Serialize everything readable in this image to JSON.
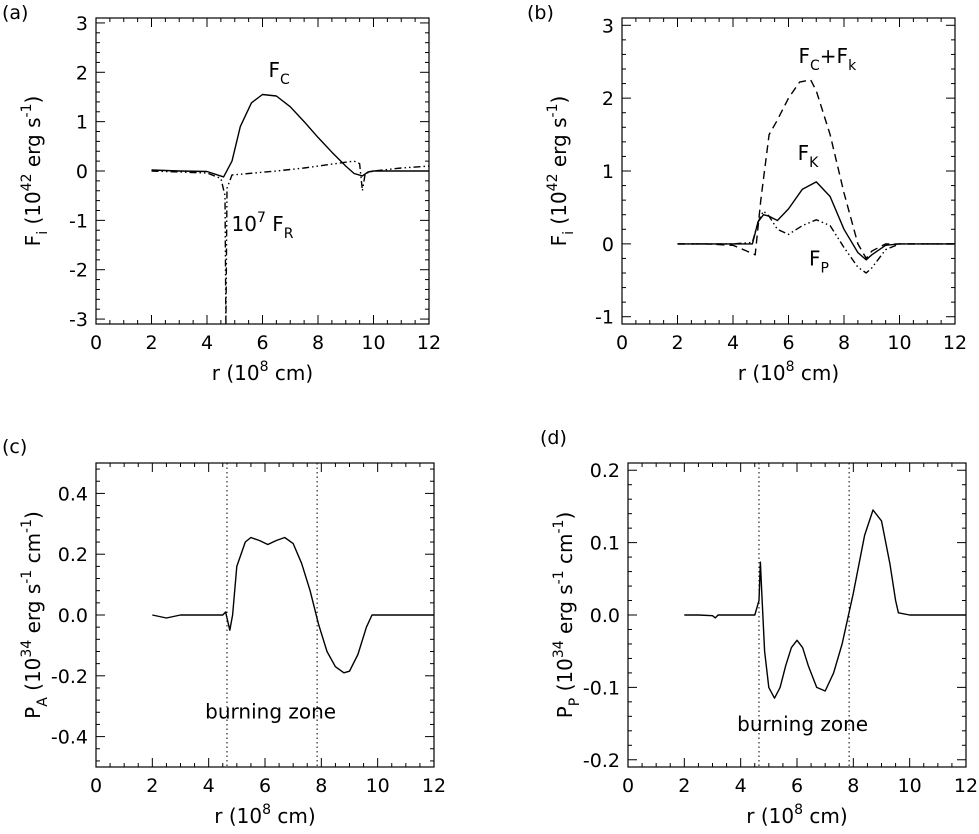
{
  "panels": [
    {
      "label": "(a)"
    },
    {
      "label": "(b)"
    },
    {
      "label": "(c)"
    },
    {
      "label": "(d)"
    }
  ],
  "chart_data": [
    {
      "type": "line",
      "panel": "(a)",
      "xlabel": "r (10^8 cm)",
      "ylabel": "F_i (10^42 erg s^-1)",
      "xlim": [
        0,
        12
      ],
      "ylim": [
        -3.1,
        3.1
      ],
      "xticks": [
        0,
        2,
        4,
        6,
        8,
        10,
        12
      ],
      "yticks": [
        -3,
        -2,
        -1,
        0,
        1,
        2,
        3
      ],
      "annotations": [
        {
          "text": "F_C",
          "x": 6.6,
          "y": 1.9
        },
        {
          "text": "10^7 F_R",
          "x": 6.0,
          "y": -1.22
        }
      ],
      "series": [
        {
          "name": "F_C",
          "style": "solid",
          "x": [
            2.0,
            3.0,
            4.0,
            4.6,
            4.9,
            5.2,
            5.6,
            6.0,
            6.5,
            7.0,
            7.5,
            8.0,
            8.5,
            9.0,
            9.3,
            9.6,
            9.8,
            10.0,
            10.5,
            11.0,
            12.0
          ],
          "y": [
            0.02,
            0.0,
            -0.01,
            -0.12,
            0.2,
            0.9,
            1.38,
            1.55,
            1.52,
            1.3,
            1.0,
            0.68,
            0.38,
            0.1,
            -0.05,
            -0.1,
            -0.02,
            0.0,
            0.0,
            0.0,
            0.0
          ]
        },
        {
          "name": "10^7 F_R",
          "style": "dash-dot-dot",
          "x": [
            2.0,
            3.0,
            4.0,
            4.5,
            4.65,
            4.68,
            4.72,
            4.9,
            5.5,
            6.5,
            7.5,
            8.5,
            9.3,
            9.5,
            9.6,
            9.7,
            10.0,
            11.0,
            12.0
          ],
          "y": [
            0.0,
            -0.02,
            -0.04,
            -0.15,
            -0.5,
            -3.1,
            -0.35,
            -0.08,
            -0.05,
            0.0,
            0.06,
            0.14,
            0.2,
            0.15,
            -0.4,
            -0.05,
            0.0,
            0.06,
            0.1
          ]
        }
      ]
    },
    {
      "type": "line",
      "panel": "(b)",
      "xlabel": "r (10^8 cm)",
      "ylabel": "F_i (10^42 erg s^-1)",
      "xlim": [
        0,
        12
      ],
      "ylim": [
        -1.1,
        3.1
      ],
      "xticks": [
        0,
        2,
        4,
        6,
        8,
        10,
        12
      ],
      "yticks": [
        -1,
        0,
        1,
        2,
        3
      ],
      "annotations": [
        {
          "text": "F_C+F_k",
          "x": 7.4,
          "y": 2.48
        },
        {
          "text": "F_K",
          "x": 6.7,
          "y": 1.15
        },
        {
          "text": "F_P",
          "x": 7.1,
          "y": -0.3
        }
      ],
      "series": [
        {
          "name": "F_C+F_k",
          "style": "dashed",
          "x": [
            2.0,
            3.0,
            4.0,
            4.5,
            4.8,
            5.0,
            5.3,
            5.6,
            6.0,
            6.4,
            6.8,
            7.0,
            7.5,
            8.0,
            8.5,
            8.8,
            9.0,
            9.5,
            10.0,
            12.0
          ],
          "y": [
            0.0,
            0.0,
            -0.02,
            -0.1,
            -0.15,
            0.6,
            1.5,
            1.7,
            2.0,
            2.22,
            2.25,
            2.1,
            1.5,
            0.7,
            0.0,
            -0.2,
            -0.1,
            0.0,
            0.0,
            0.0
          ]
        },
        {
          "name": "F_K",
          "style": "solid",
          "x": [
            2.0,
            3.0,
            4.0,
            4.7,
            4.9,
            5.1,
            5.3,
            5.6,
            6.0,
            6.5,
            7.0,
            7.5,
            8.0,
            8.5,
            8.8,
            9.0,
            9.5,
            10.0,
            12.0
          ],
          "y": [
            0.0,
            0.0,
            0.0,
            0.0,
            0.3,
            0.4,
            0.38,
            0.32,
            0.48,
            0.75,
            0.85,
            0.65,
            0.2,
            -0.12,
            -0.22,
            -0.15,
            -0.02,
            0.0,
            0.0
          ]
        },
        {
          "name": "F_P",
          "style": "dash-dot-dot",
          "x": [
            2.0,
            3.0,
            4.0,
            4.7,
            4.9,
            5.1,
            5.3,
            5.6,
            6.0,
            6.5,
            7.0,
            7.5,
            8.0,
            8.5,
            8.8,
            9.0,
            9.5,
            10.0,
            12.0
          ],
          "y": [
            0.0,
            0.0,
            0.0,
            0.02,
            0.3,
            0.45,
            0.38,
            0.2,
            0.13,
            0.25,
            0.33,
            0.25,
            -0.05,
            -0.32,
            -0.4,
            -0.33,
            -0.08,
            0.0,
            0.0
          ]
        }
      ]
    },
    {
      "type": "line",
      "panel": "(c)",
      "xlabel": "r (10^8 cm)",
      "ylabel": "P_A (10^34 erg s^-1 cm^-1)",
      "xlim": [
        0,
        12
      ],
      "ylim": [
        -0.5,
        0.5
      ],
      "xticks": [
        0,
        2,
        4,
        6,
        8,
        10,
        12
      ],
      "yticks": [
        -0.4,
        -0.2,
        0.0,
        0.2,
        0.4
      ],
      "ytick_labels": [
        "-0.4",
        "-0.2",
        "0.0",
        "0.2",
        "0.4"
      ],
      "vlines": [
        4.65,
        7.85
      ],
      "annotations": [
        {
          "text": "burning zone",
          "x": 6.2,
          "y": -0.34
        }
      ],
      "series": [
        {
          "name": "P_A",
          "style": "solid",
          "x": [
            2.0,
            2.5,
            3.0,
            3.5,
            4.0,
            4.5,
            4.6,
            4.75,
            4.85,
            5.0,
            5.3,
            5.5,
            5.8,
            6.1,
            6.4,
            6.7,
            7.0,
            7.3,
            7.6,
            7.9,
            8.2,
            8.5,
            8.8,
            9.0,
            9.3,
            9.6,
            9.8,
            10.0,
            11.0,
            12.0
          ],
          "y": [
            0.0,
            -0.01,
            0.0,
            0.0,
            0.0,
            0.0,
            0.01,
            -0.05,
            0.0,
            0.16,
            0.24,
            0.255,
            0.245,
            0.232,
            0.245,
            0.255,
            0.235,
            0.17,
            0.08,
            -0.03,
            -0.12,
            -0.17,
            -0.19,
            -0.185,
            -0.13,
            -0.04,
            0.0,
            0.0,
            0.0,
            0.0
          ]
        }
      ]
    },
    {
      "type": "line",
      "panel": "(d)",
      "xlabel": "r (10^8 cm)",
      "ylabel": "P_P (10^34 erg s^-1 cm^-1)",
      "xlim": [
        0,
        12
      ],
      "ylim": [
        -0.21,
        0.21
      ],
      "xticks": [
        0,
        2,
        4,
        6,
        8,
        10,
        12
      ],
      "yticks": [
        -0.2,
        -0.1,
        0.0,
        0.1,
        0.2
      ],
      "ytick_labels": [
        "-0.2",
        "-0.1",
        "0.0",
        "0.1",
        "0.2"
      ],
      "vlines": [
        4.65,
        7.85
      ],
      "annotations": [
        {
          "text": "burning zone",
          "x": 6.2,
          "y": -0.16
        }
      ],
      "series": [
        {
          "name": "P_P",
          "style": "solid",
          "x": [
            2.0,
            2.5,
            3.0,
            3.1,
            3.2,
            3.5,
            4.0,
            4.5,
            4.65,
            4.7,
            4.75,
            4.85,
            5.0,
            5.2,
            5.4,
            5.6,
            5.8,
            6.0,
            6.2,
            6.4,
            6.7,
            7.0,
            7.3,
            7.6,
            8.0,
            8.4,
            8.7,
            9.0,
            9.3,
            9.5,
            9.6,
            10.0,
            11.0,
            12.0
          ],
          "y": [
            0.0,
            0.0,
            -0.001,
            -0.004,
            0.0,
            0.0,
            0.0,
            0.0,
            0.02,
            0.073,
            0.03,
            -0.05,
            -0.1,
            -0.115,
            -0.1,
            -0.07,
            -0.045,
            -0.035,
            -0.045,
            -0.07,
            -0.1,
            -0.105,
            -0.08,
            -0.04,
            0.03,
            0.11,
            0.145,
            0.13,
            0.07,
            0.02,
            0.003,
            0.0,
            0.0,
            0.0
          ]
        }
      ]
    }
  ]
}
